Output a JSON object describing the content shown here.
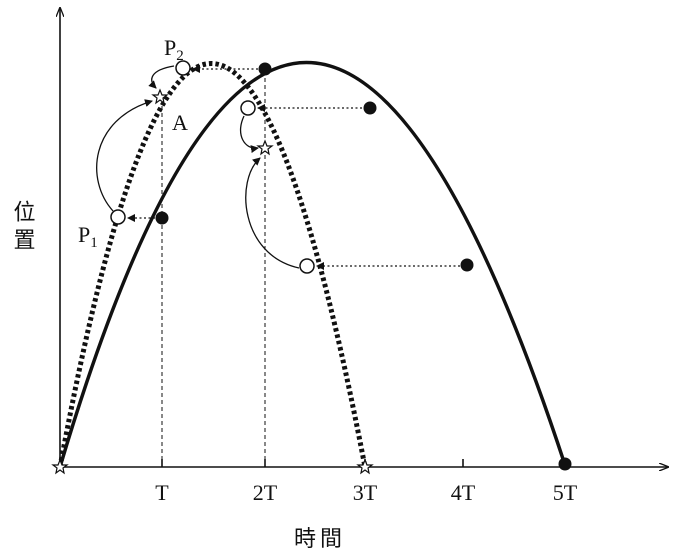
{
  "axes": {
    "y_label": "位置",
    "x_label": "時間",
    "x_ticks": [
      "T",
      "2T",
      "3T",
      "4T",
      "5T"
    ]
  },
  "points": {
    "p1": {
      "letter": "P",
      "sub": "1"
    },
    "p2": {
      "letter": "P",
      "sub": "2"
    },
    "a": "A"
  }
}
